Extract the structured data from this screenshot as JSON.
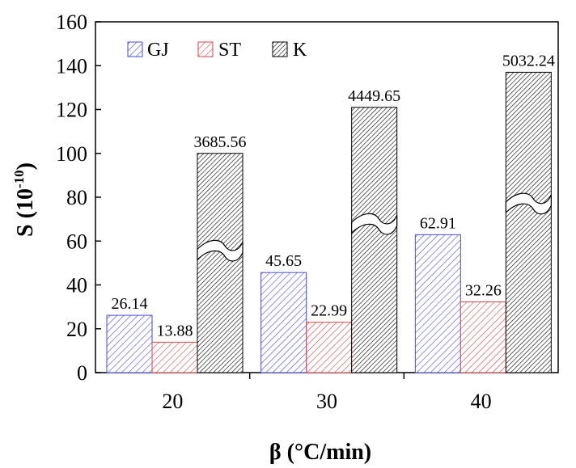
{
  "chart_data": {
    "type": "bar",
    "categories": [
      "20",
      "30",
      "40"
    ],
    "series": [
      {
        "name": "GJ",
        "values": [
          26.14,
          45.65,
          62.91
        ],
        "labels": [
          "26.14",
          "45.65",
          "62.91"
        ],
        "color": "#4a4ad6",
        "pattern": "hatch-diagonal"
      },
      {
        "name": "ST",
        "values": [
          13.88,
          22.99,
          32.26
        ],
        "labels": [
          "13.88",
          "22.99",
          "32.26"
        ],
        "color": "#d64545",
        "pattern": "hatch-diagonal"
      },
      {
        "name": "K",
        "values": [
          3685.56,
          4449.65,
          5032.24
        ],
        "labels": [
          "3685.56",
          "4449.65",
          "5032.24"
        ],
        "color": "#000000",
        "pattern": "hatch-dense",
        "broken_axis": true,
        "plotted_values": [
          100,
          121,
          137
        ]
      }
    ],
    "xlabel": "β (°C/min)",
    "ylabel": {
      "base": "S (10",
      "exponent": "-10",
      "close": ")"
    },
    "ylim": [
      0,
      160
    ],
    "yticks": [
      0,
      20,
      40,
      60,
      80,
      100,
      120,
      140,
      160
    ],
    "ytick_labels": [
      "0",
      "20",
      "40",
      "60",
      "80",
      "100",
      "120",
      "140",
      "160"
    ],
    "legend_position": "top-left",
    "grid": false
  }
}
